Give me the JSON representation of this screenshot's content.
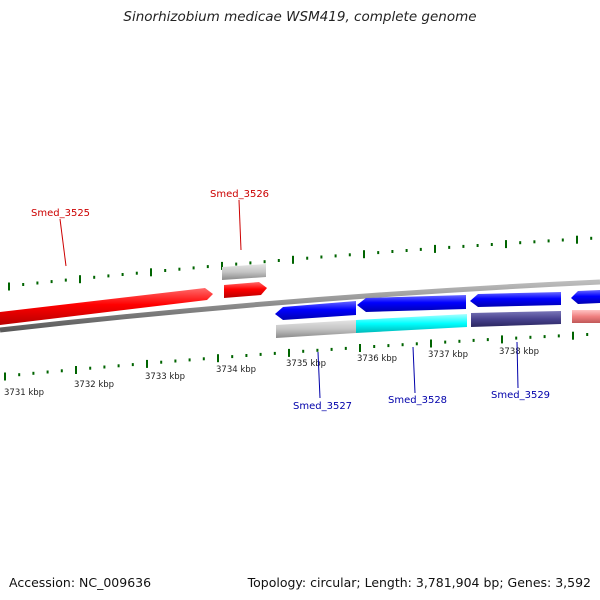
{
  "title": "Sinorhizobium medicae WSM419, complete genome",
  "footer": {
    "accession": "Accession: NC_009636",
    "summary": "Topology: circular; Length: 3,781,904 bp; Genes: 3,592"
  },
  "scale_labels": [
    "3731 kbp",
    "3732 kbp",
    "3733 kbp",
    "3734 kbp",
    "3735 kbp",
    "3736 kbp",
    "3737 kbp",
    "3738 kbp"
  ],
  "colors": {
    "forward_label": "#cc0000",
    "reverse_label": "#0000aa",
    "tick": "#006400",
    "backbone": "#808080"
  },
  "genes": [
    {
      "id": "Smed_3525",
      "label": "Smed_3525",
      "strand": "+",
      "color": "#ff0000"
    },
    {
      "id": "Smed_3526",
      "label": "Smed_3526",
      "strand": "+",
      "color": "#ff0000"
    },
    {
      "id": "Smed_3527",
      "label": "Smed_3527",
      "strand": "-",
      "color": "#0000ff"
    },
    {
      "id": "Smed_3528",
      "label": "Smed_3528",
      "strand": "-",
      "color": "#0000ff"
    },
    {
      "id": "Smed_3529",
      "label": "Smed_3529",
      "strand": "-",
      "color": "#0000ff"
    }
  ]
}
